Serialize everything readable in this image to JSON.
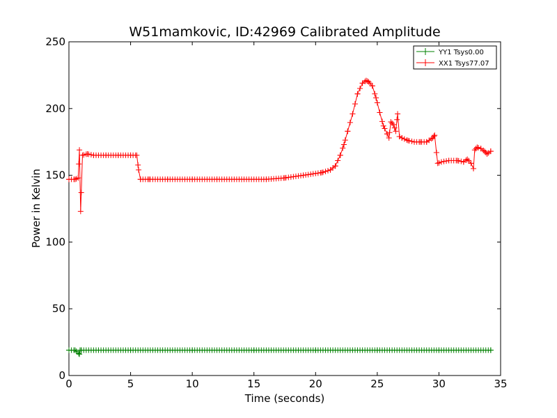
{
  "chart_data": {
    "type": "line",
    "title": "W51mamkovic, ID:42969 Calibrated Amplitude",
    "xlabel": "Time (seconds)",
    "ylabel": "Power in Kelvin",
    "xlim": [
      0,
      35
    ],
    "ylim": [
      0,
      250
    ],
    "xticks": [
      0,
      5,
      10,
      15,
      20,
      25,
      30,
      35
    ],
    "yticks": [
      0,
      50,
      100,
      150,
      200,
      250
    ],
    "grid": false,
    "legend_position": "top-right",
    "marker": "+",
    "series": [
      {
        "name": "YY1 Tsys0.00",
        "color": "#008000",
        "x": [
          0.0,
          0.5,
          0.85,
          0.9,
          1.0,
          5.0,
          10.0,
          15.0,
          20.0,
          25.0,
          30.0,
          34.2
        ],
        "y": [
          19,
          19,
          16,
          19,
          19,
          19,
          19,
          19,
          19,
          19,
          19,
          19
        ]
      },
      {
        "name": "XX1 Tsys77.07",
        "color": "#ff0000",
        "x": [
          0.0,
          0.5,
          0.75,
          0.85,
          0.95,
          1.1,
          1.5,
          2.0,
          3.0,
          4.0,
          5.0,
          5.5,
          5.65,
          5.8,
          6.5,
          8.0,
          10.0,
          12.0,
          14.0,
          16.0,
          17.5,
          19.0,
          20.5,
          21.2,
          21.6,
          22.0,
          22.3,
          22.6,
          23.0,
          23.4,
          23.8,
          24.1,
          24.3,
          24.6,
          24.9,
          25.2,
          25.5,
          25.8,
          25.95,
          26.1,
          26.3,
          26.5,
          26.65,
          26.8,
          27.0,
          27.5,
          28.0,
          28.5,
          29.0,
          29.5,
          29.65,
          29.8,
          29.9,
          30.2,
          30.8,
          31.5,
          32.0,
          32.3,
          32.6,
          32.8,
          32.9,
          33.1,
          33.4,
          33.7,
          33.9,
          34.2
        ],
        "y": [
          147,
          147,
          148,
          169,
          123,
          165,
          166,
          165,
          165,
          165,
          165,
          165,
          154,
          147,
          147,
          147,
          147,
          147,
          147,
          147,
          148,
          150,
          152,
          154,
          157,
          165,
          173,
          183,
          196,
          211,
          219,
          221,
          220,
          217,
          208,
          197,
          187,
          181,
          178,
          190,
          188,
          183,
          196,
          179,
          178,
          176,
          175,
          175,
          175,
          178,
          180,
          167,
          159,
          160,
          161,
          161,
          160,
          162,
          159,
          155,
          169,
          171,
          170,
          168,
          166,
          168
        ]
      }
    ]
  }
}
